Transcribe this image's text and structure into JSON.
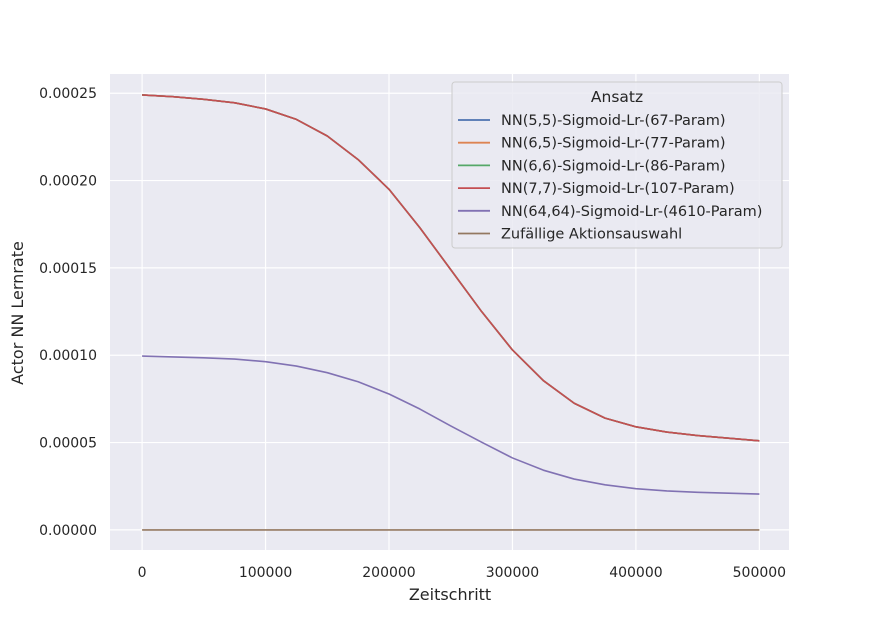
{
  "chart_data": {
    "type": "line",
    "xlabel": "Zeitschritt",
    "ylabel": "Actor NN Lernrate",
    "xlim": [
      -26000,
      524000
    ],
    "ylim": [
      -1.15e-05,
      0.000261
    ],
    "xticks": [
      0,
      100000,
      200000,
      300000,
      400000,
      500000
    ],
    "xtick_labels": [
      "0",
      "100000",
      "200000",
      "300000",
      "400000",
      "500000"
    ],
    "yticks": [
      0,
      5e-05,
      0.0001,
      0.00015,
      0.0002,
      0.00025
    ],
    "ytick_labels": [
      "0.00000",
      "0.00005",
      "0.00010",
      "0.00015",
      "0.00020",
      "0.00025"
    ],
    "grid": true,
    "legend": {
      "title": "Ansatz",
      "placement": "top-right"
    },
    "x": [
      0,
      25000,
      50000,
      75000,
      100000,
      125000,
      150000,
      175000,
      200000,
      225000,
      250000,
      275000,
      300000,
      325000,
      350000,
      375000,
      400000,
      425000,
      450000,
      475000,
      500000
    ],
    "series": [
      {
        "name": "NN(5,5)-Sigmoid-Lr-(67-Param)",
        "color": "#4c72b0",
        "values": [
          0.000249,
          0.000248,
          0.0002465,
          0.0002445,
          0.000241,
          0.000235,
          0.0002255,
          0.000212,
          0.000195,
          0.000173,
          0.000149,
          0.000125,
          0.000103,
          8.55e-05,
          7.25e-05,
          6.4e-05,
          5.9e-05,
          5.6e-05,
          5.4e-05,
          5.25e-05,
          5.1e-05
        ]
      },
      {
        "name": "NN(6,5)-Sigmoid-Lr-(77-Param)",
        "color": "#dd8452",
        "values": [
          0.000249,
          0.000248,
          0.0002465,
          0.0002445,
          0.000241,
          0.000235,
          0.0002255,
          0.000212,
          0.000195,
          0.000173,
          0.000149,
          0.000125,
          0.000103,
          8.55e-05,
          7.25e-05,
          6.4e-05,
          5.9e-05,
          5.6e-05,
          5.4e-05,
          5.25e-05,
          5.1e-05
        ]
      },
      {
        "name": "NN(6,6)-Sigmoid-Lr-(86-Param)",
        "color": "#55a868",
        "values": [
          0.000249,
          0.000248,
          0.0002465,
          0.0002445,
          0.000241,
          0.000235,
          0.0002255,
          0.000212,
          0.000195,
          0.000173,
          0.000149,
          0.000125,
          0.000103,
          8.55e-05,
          7.25e-05,
          6.4e-05,
          5.9e-05,
          5.6e-05,
          5.4e-05,
          5.25e-05,
          5.1e-05
        ]
      },
      {
        "name": "NN(7,7)-Sigmoid-Lr-(107-Param)",
        "color": "#c44e52",
        "values": [
          0.000249,
          0.000248,
          0.0002465,
          0.0002445,
          0.000241,
          0.000235,
          0.0002255,
          0.000212,
          0.000195,
          0.000173,
          0.000149,
          0.000125,
          0.000103,
          8.55e-05,
          7.25e-05,
          6.4e-05,
          5.9e-05,
          5.6e-05,
          5.4e-05,
          5.25e-05,
          5.1e-05
        ]
      },
      {
        "name": "NN(64,64)-Sigmoid-Lr-(4610-Param)",
        "color": "#8172b3",
        "values": [
          9.95e-05,
          9.9e-05,
          9.85e-05,
          9.78e-05,
          9.63e-05,
          9.38e-05,
          9e-05,
          8.48e-05,
          7.78e-05,
          6.92e-05,
          5.95e-05,
          5.02e-05,
          4.12e-05,
          3.42e-05,
          2.91e-05,
          2.58e-05,
          2.36e-05,
          2.23e-05,
          2.15e-05,
          2.1e-05,
          2.05e-05
        ]
      },
      {
        "name": "Zufällige Aktionsauswahl",
        "color": "#937860",
        "values": [
          0,
          0,
          0,
          0,
          0,
          0,
          0,
          0,
          0,
          0,
          0,
          0,
          0,
          0,
          0,
          0,
          0,
          0,
          0,
          0,
          0
        ]
      }
    ]
  }
}
